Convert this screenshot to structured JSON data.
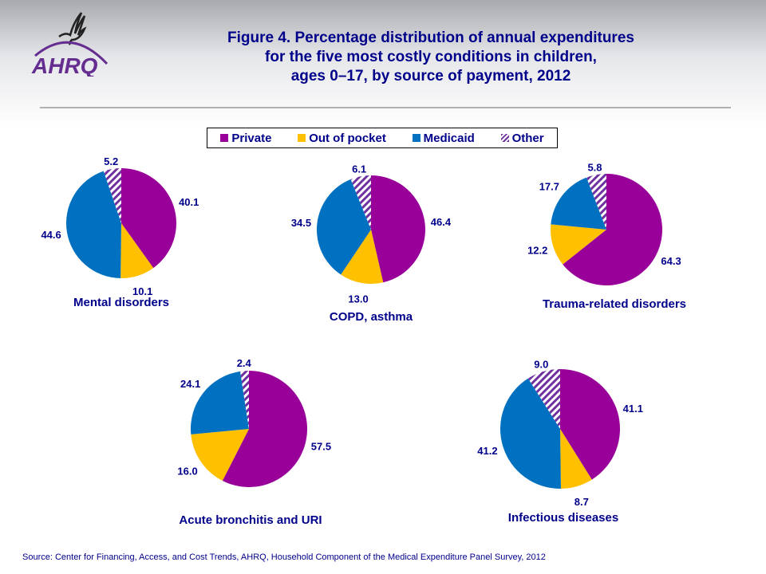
{
  "logo": {
    "text": "AHRQ"
  },
  "title": [
    "Figure 4. Percentage distribution of annual expenditures",
    "for the five most costly conditions in children,",
    "ages 0–17, by source of payment, 2012"
  ],
  "legend": [
    {
      "name": "Private",
      "color": "#990099"
    },
    {
      "name": "Out of pocket",
      "color": "#FFC000"
    },
    {
      "name": "Medicaid",
      "color": "#0070C0"
    },
    {
      "name": "Other",
      "color": "#7030A0",
      "pattern": "hatched"
    }
  ],
  "chart_data": [
    {
      "type": "pie",
      "title": "Mental disorders",
      "categories": [
        "Private",
        "Out of pocket",
        "Medicaid",
        "Other"
      ],
      "values": [
        40.1,
        10.1,
        44.6,
        5.2
      ]
    },
    {
      "type": "pie",
      "title": "COPD, asthma",
      "categories": [
        "Private",
        "Out of pocket",
        "Medicaid",
        "Other"
      ],
      "values": [
        46.4,
        13.0,
        34.5,
        6.1
      ]
    },
    {
      "type": "pie",
      "title": "Trauma-related disorders",
      "categories": [
        "Private",
        "Out of pocket",
        "Medicaid",
        "Other"
      ],
      "values": [
        64.3,
        12.2,
        17.7,
        5.8
      ]
    },
    {
      "type": "pie",
      "title": "Acute bronchitis and URI",
      "categories": [
        "Private",
        "Out of pocket",
        "Medicaid",
        "Other"
      ],
      "values": [
        57.5,
        16.0,
        24.1,
        2.4
      ]
    },
    {
      "type": "pie",
      "title": "Infectious diseases",
      "categories": [
        "Private",
        "Out of pocket",
        "Medicaid",
        "Other"
      ],
      "values": [
        41.1,
        8.7,
        41.2,
        9.0
      ]
    }
  ],
  "source": "Source: Center for Financing, Access, and Cost Trends, AHRQ, Household Component of the Medical Expenditure Panel Survey,  2012"
}
